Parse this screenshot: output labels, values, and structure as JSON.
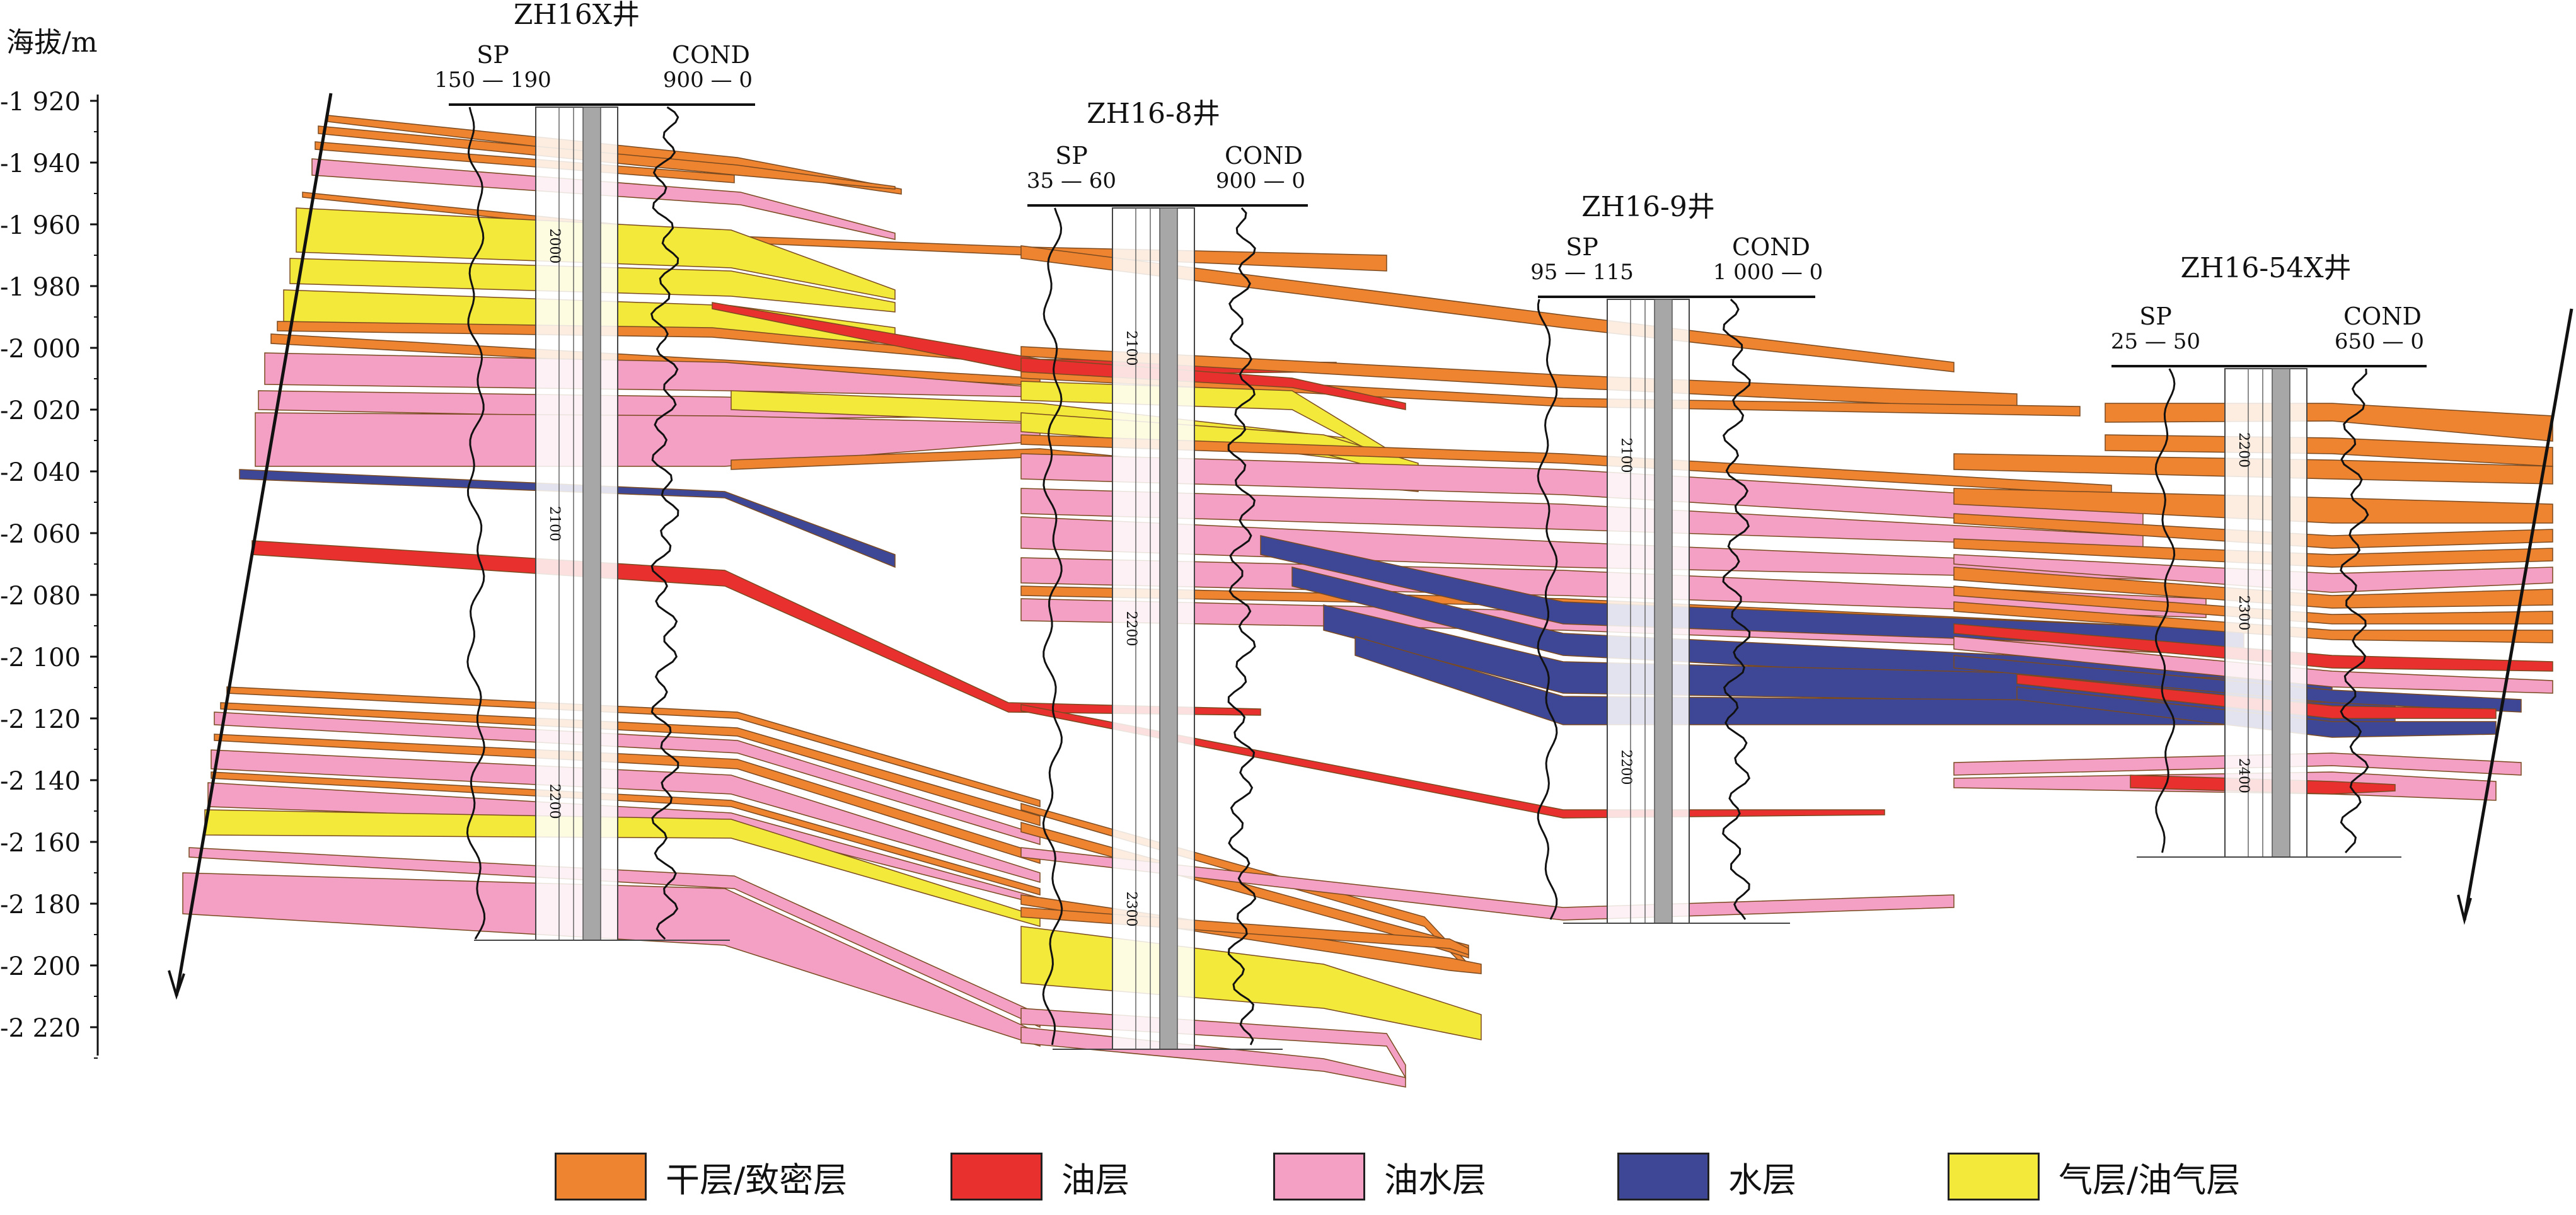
{
  "axis": {
    "label": "海拔/m",
    "ticks": [
      "-1 920",
      "-1 940",
      "-1 960",
      "-1 980",
      "-2 000",
      "-2 020",
      "-2 040",
      "-2 060",
      "-2 080",
      "-2 100",
      "-2 120",
      "-2 140",
      "-2 160",
      "-2 180",
      "-2 200",
      "-2 220"
    ]
  },
  "wells": [
    {
      "title": "ZH16X井",
      "sp_label": "SP",
      "sp_range": "150 — 190",
      "cond_label": "COND",
      "cond_range": "900 — 0",
      "md_labels": [
        "2000",
        "2100",
        "2200"
      ]
    },
    {
      "title": "ZH16-8井",
      "sp_label": "SP",
      "sp_range": "35 — 60",
      "cond_label": "COND",
      "cond_range": "900 — 0",
      "md_labels": [
        "2100",
        "2200",
        "2300"
      ]
    },
    {
      "title": "ZH16-9井",
      "sp_label": "SP",
      "sp_range": "95 — 115",
      "cond_label": "COND",
      "cond_range": "1 000 — 0",
      "md_labels": [
        "2100",
        "2200"
      ]
    },
    {
      "title": "ZH16-54X井",
      "sp_label": "SP",
      "sp_range": "25 — 50",
      "cond_label": "COND",
      "cond_range": "650 — 0",
      "md_labels": [
        "2200",
        "2300",
        "2400"
      ]
    }
  ],
  "legend": [
    {
      "label": "干层/致密层",
      "color": "#ef8430"
    },
    {
      "label": "油层",
      "color": "#e8302e"
    },
    {
      "label": "油水层",
      "color": "#f3a0c4"
    },
    {
      "label": "水层",
      "color": "#3e4796"
    },
    {
      "label": "气层/油气层",
      "color": "#f2e93a"
    }
  ]
}
